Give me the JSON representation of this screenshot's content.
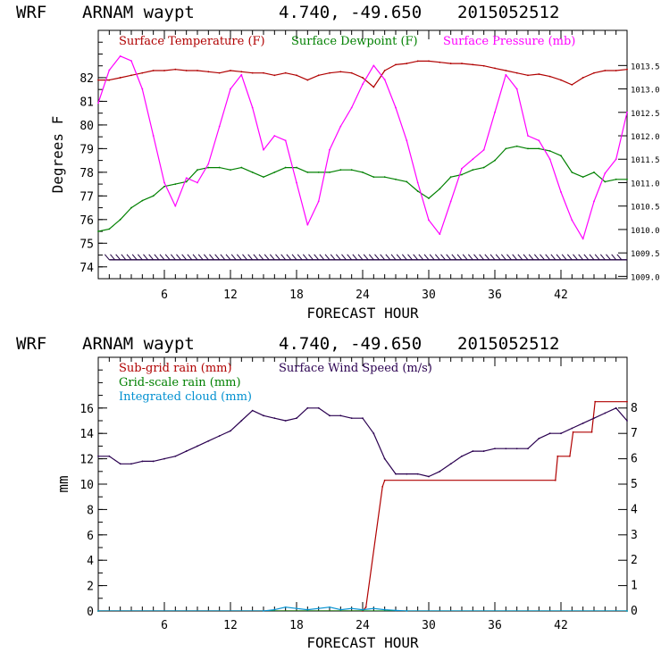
{
  "chart_data": [
    {
      "type": "line",
      "header": {
        "model": "WRF",
        "station": "ARNAM waypt",
        "coords": "4.740, -49.650",
        "init": "2015052512"
      },
      "xlabel": "FORECAST HOUR",
      "ylabel": "Degrees F",
      "xlim": [
        0,
        48
      ],
      "xticks": [
        6,
        12,
        18,
        24,
        30,
        36,
        42
      ],
      "ylim": [
        73.5,
        84
      ],
      "yticks": [
        74,
        75,
        76,
        77,
        78,
        79,
        80,
        81,
        82
      ],
      "y2lim": [
        1008.95,
        1014.25
      ],
      "y2ticks": [
        1009.0,
        1009.5,
        1010.0,
        1010.5,
        1011.0,
        1011.5,
        1012.0,
        1012.5,
        1013.0,
        1013.5
      ],
      "y2ticklabels": [
        "1009.0",
        "1009.5",
        "1010.0",
        "1010.5",
        "1011.0",
        "1011.5",
        "1012.0",
        "1012.5",
        "1013.0",
        "1013.5"
      ],
      "legend_position": "top",
      "series": [
        {
          "name": "Surface Temperature (F)",
          "color": "#b00000",
          "axis": "left",
          "x": [
            0,
            1,
            2,
            3,
            4,
            5,
            6,
            7,
            8,
            9,
            10,
            11,
            12,
            13,
            14,
            15,
            16,
            17,
            18,
            19,
            20,
            21,
            22,
            23,
            24,
            25,
            26,
            27,
            28,
            29,
            30,
            31,
            32,
            33,
            34,
            35,
            36,
            37,
            38,
            39,
            40,
            41,
            42,
            43,
            44,
            45,
            46,
            47,
            48
          ],
          "y": [
            81.9,
            81.9,
            82.0,
            82.1,
            82.2,
            82.3,
            82.3,
            82.35,
            82.3,
            82.3,
            82.25,
            82.2,
            82.3,
            82.25,
            82.2,
            82.2,
            82.1,
            82.2,
            82.1,
            81.9,
            82.1,
            82.2,
            82.25,
            82.2,
            82.0,
            81.6,
            82.3,
            82.55,
            82.6,
            82.7,
            82.7,
            82.65,
            82.6,
            82.6,
            82.55,
            82.5,
            82.4,
            82.3,
            82.2,
            82.1,
            82.15,
            82.05,
            81.9,
            81.7,
            82.0,
            82.2,
            82.3,
            82.3,
            82.35
          ]
        },
        {
          "name": "Surface Dewpoint (F)",
          "color": "#008000",
          "axis": "left",
          "x": [
            0,
            1,
            2,
            3,
            4,
            5,
            6,
            7,
            8,
            9,
            10,
            11,
            12,
            13,
            14,
            15,
            16,
            17,
            18,
            19,
            20,
            21,
            22,
            23,
            24,
            25,
            26,
            27,
            28,
            29,
            30,
            31,
            32,
            33,
            34,
            35,
            36,
            37,
            38,
            39,
            40,
            41,
            42,
            43,
            44,
            45,
            46,
            47,
            48
          ],
          "y": [
            75.5,
            75.6,
            76.0,
            76.5,
            76.8,
            77.0,
            77.4,
            77.5,
            77.6,
            78.1,
            78.2,
            78.2,
            78.1,
            78.2,
            78.0,
            77.8,
            78.0,
            78.2,
            78.2,
            78.0,
            78.0,
            78.0,
            78.1,
            78.1,
            78.0,
            77.8,
            77.8,
            77.7,
            77.6,
            77.2,
            76.9,
            77.3,
            77.8,
            77.9,
            78.1,
            78.2,
            78.5,
            79.0,
            79.1,
            79.0,
            79.0,
            78.9,
            78.7,
            78.0,
            77.8,
            78.0,
            77.6,
            77.7,
            77.7
          ]
        },
        {
          "name": "Surface Pressure (mb)",
          "color": "#ff00ff",
          "axis": "right",
          "x": [
            0,
            1,
            2,
            3,
            4,
            5,
            6,
            7,
            8,
            9,
            10,
            11,
            12,
            13,
            14,
            15,
            16,
            17,
            18,
            19,
            20,
            21,
            22,
            23,
            24,
            25,
            26,
            27,
            28,
            29,
            30,
            31,
            32,
            33,
            34,
            35,
            36,
            37,
            38,
            39,
            40,
            41,
            42,
            43,
            44,
            45,
            46,
            47,
            48
          ],
          "y": [
            1012.7,
            1013.4,
            1013.7,
            1013.6,
            1013.0,
            1012.0,
            1011.0,
            1010.5,
            1011.1,
            1011.0,
            1011.4,
            1012.2,
            1013.0,
            1013.3,
            1012.6,
            1011.7,
            1012.0,
            1011.9,
            1011.0,
            1010.1,
            1010.6,
            1011.7,
            1012.2,
            1012.6,
            1013.1,
            1013.5,
            1013.2,
            1012.6,
            1011.9,
            1011.0,
            1010.2,
            1009.9,
            1010.6,
            1011.3,
            1011.5,
            1011.7,
            1012.5,
            1013.3,
            1013.0,
            1012.0,
            1011.9,
            1011.5,
            1010.8,
            1010.2,
            1009.8,
            1010.6,
            1011.2,
            1011.5,
            1012.5
          ]
        }
      ],
      "wind_barbs": {
        "y_level": 74.3
      }
    },
    {
      "type": "line",
      "header": {
        "model": "WRF",
        "station": "ARNAM waypt",
        "coords": "4.740, -49.650",
        "init": "2015052512"
      },
      "xlabel": "FORECAST HOUR",
      "ylabel": "mm",
      "xlim": [
        0,
        48
      ],
      "xticks": [
        6,
        12,
        18,
        24,
        30,
        36,
        42
      ],
      "ylim": [
        0,
        20
      ],
      "yticks": [
        0,
        2,
        4,
        6,
        8,
        10,
        12,
        14,
        16
      ],
      "y2lim": [
        0,
        10
      ],
      "y2ticks": [
        0,
        1,
        2,
        3,
        4,
        5,
        6,
        7,
        8
      ],
      "y2ticklabels": [
        "0",
        "1",
        "2",
        "3",
        "4",
        "5",
        "6",
        "7",
        "8"
      ],
      "legend_position": "top-left",
      "series": [
        {
          "name": "Sub-grid rain (mm)",
          "color": "#b00000",
          "axis": "left",
          "x": [
            0,
            24,
            24.3,
            25.8,
            26,
            41.5,
            41.7,
            42.8,
            43.1,
            44.8,
            45.1,
            48
          ],
          "y": [
            0,
            0,
            0.3,
            9.8,
            10.3,
            10.3,
            12.2,
            12.2,
            14.1,
            14.1,
            16.5,
            16.5
          ]
        },
        {
          "name": "Surface Wind Speed (m/s)",
          "color": "#2a0050",
          "axis": "right",
          "x": [
            0,
            1,
            2,
            3,
            4,
            5,
            6,
            7,
            8,
            9,
            10,
            11,
            12,
            13,
            14,
            15,
            16,
            17,
            18,
            19,
            20,
            21,
            22,
            23,
            24,
            25,
            26,
            27,
            28,
            29,
            30,
            31,
            32,
            33,
            34,
            35,
            36,
            37,
            38,
            39,
            40,
            41,
            42,
            43,
            44,
            45,
            46,
            47,
            48
          ],
          "y": [
            6.1,
            6.1,
            5.8,
            5.8,
            5.9,
            5.9,
            6.0,
            6.1,
            6.3,
            6.5,
            6.7,
            6.9,
            7.1,
            7.5,
            7.9,
            7.7,
            7.6,
            7.5,
            7.6,
            8.0,
            8.0,
            7.7,
            7.7,
            7.6,
            7.6,
            7.0,
            6.0,
            5.4,
            5.4,
            5.4,
            5.3,
            5.5,
            5.8,
            6.1,
            6.3,
            6.3,
            6.4,
            6.4,
            6.4,
            6.4,
            6.8,
            7.0,
            7.0,
            7.2,
            7.4,
            7.6,
            7.8,
            8.0,
            7.5
          ]
        },
        {
          "name": "Grid-scale rain (mm)",
          "color": "#008000",
          "axis": "left",
          "x": [
            0,
            48
          ],
          "y": [
            0,
            0
          ]
        },
        {
          "name": "Integrated cloud (mm)",
          "color": "#0090d0",
          "axis": "left",
          "x": [
            0,
            15,
            16,
            17,
            18,
            19,
            20,
            21,
            22,
            23,
            24,
            25,
            26,
            27,
            28,
            48
          ],
          "y": [
            0,
            0,
            0.1,
            0.3,
            0.2,
            0.1,
            0.2,
            0.3,
            0.1,
            0.2,
            0.1,
            0.2,
            0.1,
            0.05,
            0,
            0
          ]
        }
      ]
    }
  ]
}
